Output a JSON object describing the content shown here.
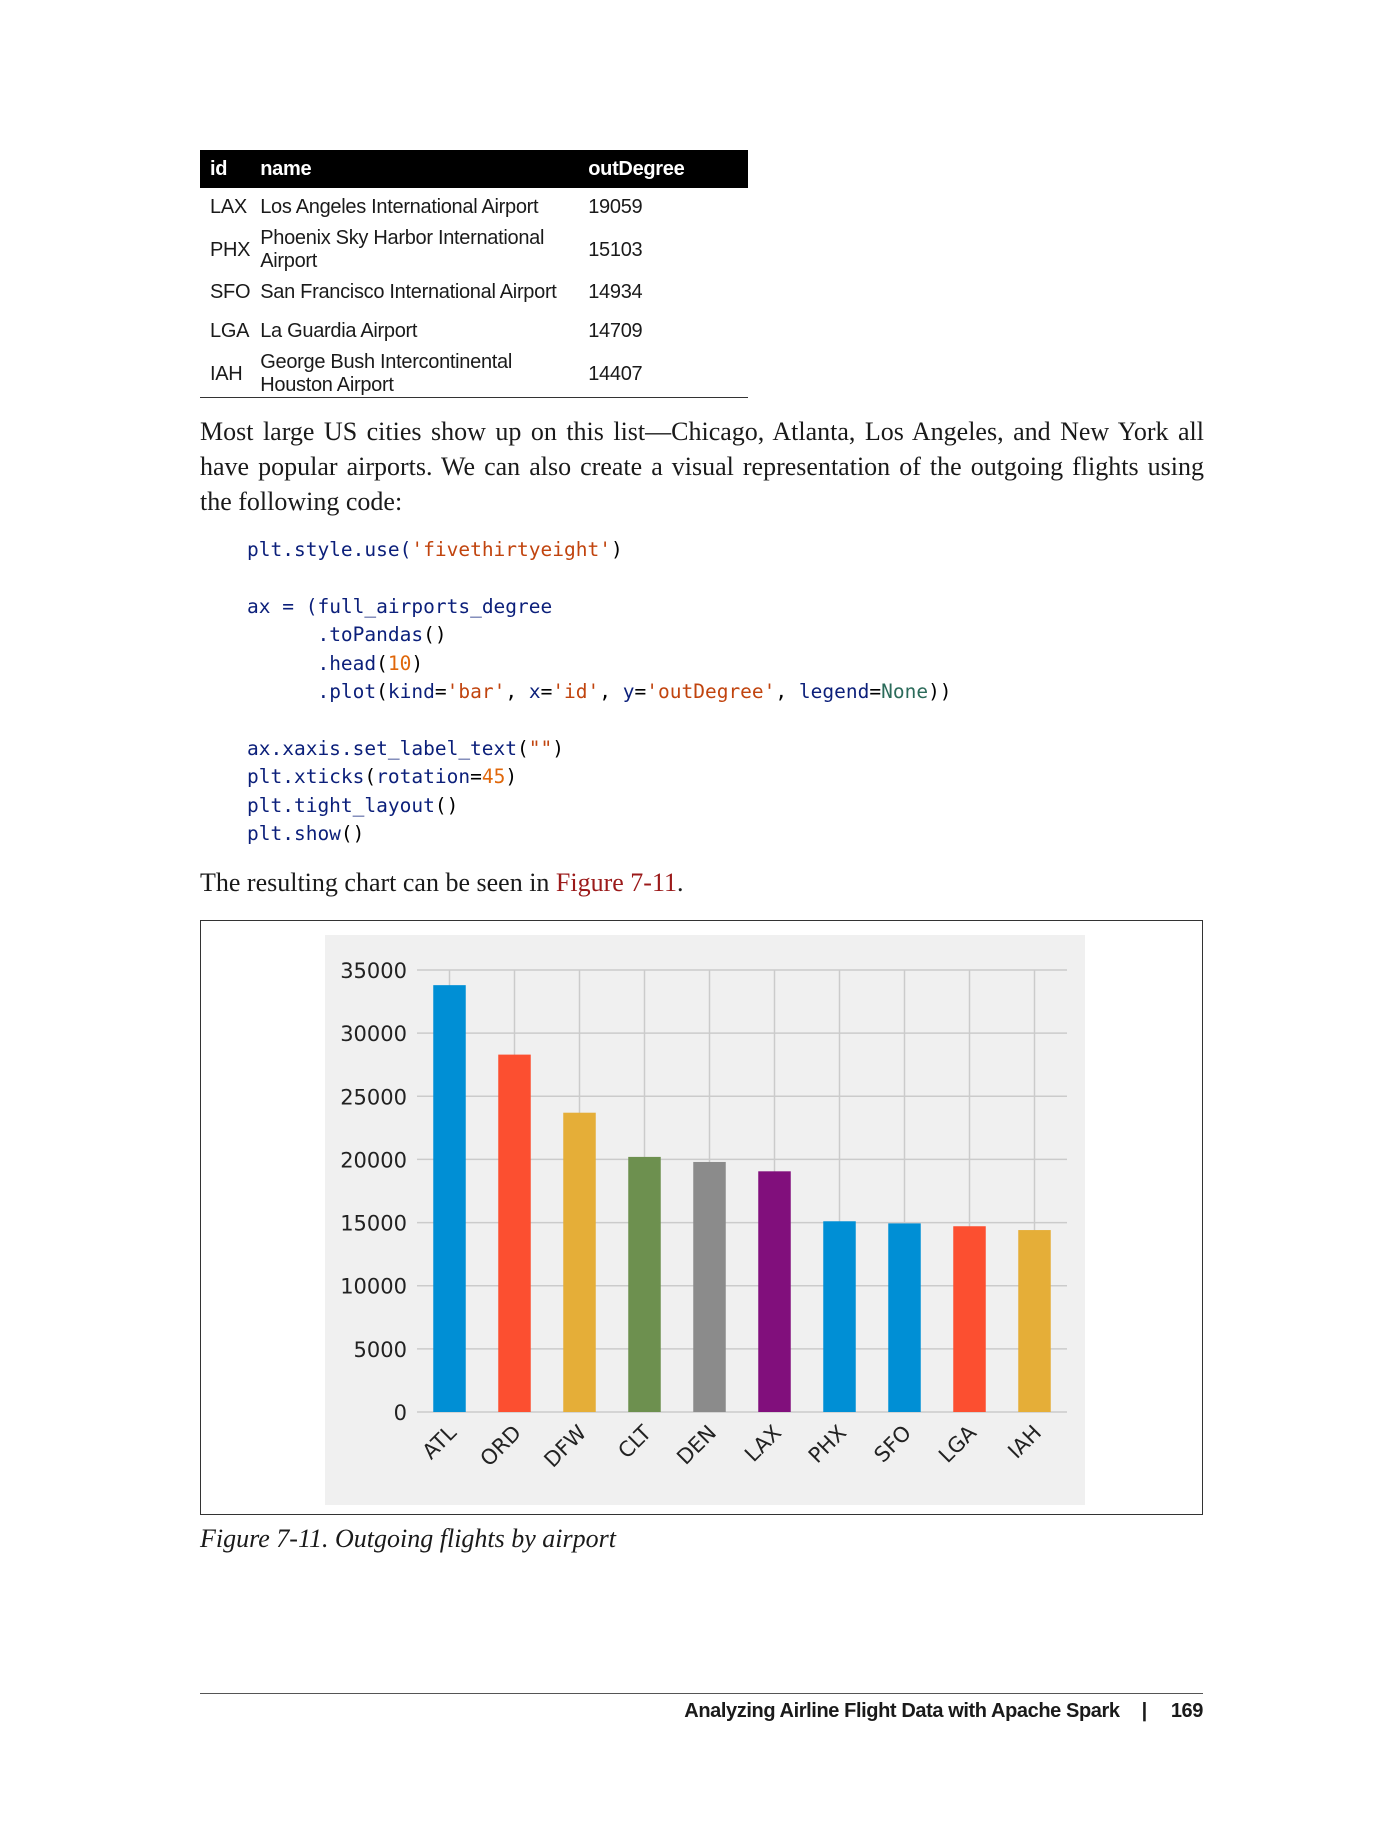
{
  "table": {
    "headers": [
      "id",
      "name",
      "outDegree"
    ],
    "rows": [
      [
        "LAX",
        "Los Angeles International Airport",
        "19059"
      ],
      [
        "PHX",
        "Phoenix Sky Harbor International Airport",
        "15103"
      ],
      [
        "SFO",
        "San Francisco International Airport",
        "14934"
      ],
      [
        "LGA",
        "La Guardia Airport",
        "14709"
      ],
      [
        "IAH",
        "George Bush Intercontinental Houston Airport",
        "14407"
      ]
    ]
  },
  "paragraph1": "Most large US cities show up on this list—Chicago, Atlanta, Los Angeles, and New York all have popular airports. We can also create a visual representation of the outgoing flights using the following code:",
  "code": {
    "line1_a": "plt.style.use(",
    "line1_str": "'fivethirtyeight'",
    "line1_b": ")",
    "line2_a": "ax = (",
    "line2_fn": "full_airports_degree",
    "line3": ".toPandas",
    "line3_b": "()",
    "line4": ".head",
    "line4_num": "10",
    "line5_fn": ".plot",
    "line5_kind": "kind",
    "line5_kindval": "'bar'",
    "line5_x": "x",
    "line5_xval": "'id'",
    "line5_y": "y",
    "line5_yval": "'outDegree'",
    "line5_legend": "legend",
    "line5_none": "None",
    "line6": "ax.xaxis.set_label_text",
    "line6_str": "\"\"",
    "line7": "plt.xticks",
    "line7_kw": "rotation",
    "line7_num": "45",
    "line8": "plt.tight_layout",
    "line9": "plt.show"
  },
  "paragraph2_prefix": "The resulting chart can be seen in ",
  "paragraph2_link": "Figure 7-11",
  "paragraph2_suffix": ".",
  "chart_data": {
    "type": "bar",
    "categories": [
      "ATL",
      "ORD",
      "DFW",
      "CLT",
      "DEN",
      "LAX",
      "PHX",
      "SFO",
      "LGA",
      "IAH"
    ],
    "values": [
      33800,
      28300,
      23700,
      20200,
      19800,
      19059,
      15103,
      14934,
      14709,
      14407
    ],
    "colors": [
      "#008fd5",
      "#fc4f30",
      "#e5ae38",
      "#6d904f",
      "#8b8b8b",
      "#810f7c",
      "#008fd5",
      "#008fd5",
      "#fc4f30",
      "#e5ae38"
    ],
    "yticks": [
      "0",
      "5000",
      "10000",
      "15000",
      "20000",
      "25000",
      "30000",
      "35000"
    ],
    "ylim": [
      0,
      35000
    ],
    "legend": "none",
    "grid": true,
    "style": "fivethirtyeight",
    "background": "#f0f0f0"
  },
  "caption": "Figure 7-11. Outgoing flights by airport",
  "footer": {
    "title": "Analyzing Airline Flight Data with Apache Spark",
    "separator": "|",
    "page_number": "169"
  }
}
